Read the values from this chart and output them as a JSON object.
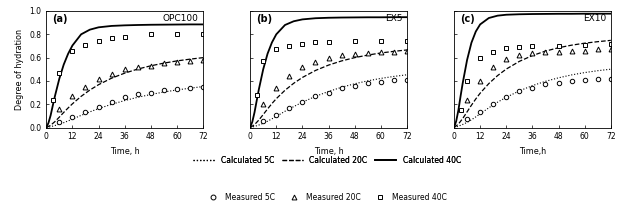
{
  "panels": [
    "(a)",
    "(b)",
    "(c)"
  ],
  "labels": [
    "OPC100",
    "EX5",
    "EX10"
  ],
  "xlabel": [
    "Time, h",
    "Time, h",
    "Time,h"
  ],
  "ylabel": "Degree of hydration",
  "xlim": [
    0,
    72
  ],
  "ylim": [
    0,
    1.0
  ],
  "xticks": [
    0,
    12,
    24,
    36,
    48,
    60,
    72
  ],
  "yticks": [
    0,
    0.2,
    0.4,
    0.6,
    0.8,
    1.0
  ],
  "calc_5C": {
    "OPC100": {
      "x": [
        0,
        2,
        4,
        6,
        8,
        10,
        12,
        16,
        20,
        24,
        30,
        36,
        42,
        48,
        54,
        60,
        66,
        72
      ],
      "y": [
        0,
        0.008,
        0.018,
        0.03,
        0.042,
        0.057,
        0.073,
        0.105,
        0.135,
        0.163,
        0.2,
        0.232,
        0.26,
        0.284,
        0.305,
        0.323,
        0.338,
        0.352
      ]
    },
    "EX5": {
      "x": [
        0,
        2,
        4,
        6,
        8,
        10,
        12,
        16,
        20,
        24,
        30,
        36,
        42,
        48,
        54,
        60,
        66,
        72
      ],
      "y": [
        0,
        0.01,
        0.022,
        0.037,
        0.055,
        0.075,
        0.096,
        0.14,
        0.18,
        0.218,
        0.268,
        0.31,
        0.346,
        0.376,
        0.401,
        0.422,
        0.439,
        0.453
      ]
    },
    "EX10": {
      "x": [
        0,
        2,
        4,
        6,
        8,
        10,
        12,
        16,
        20,
        24,
        30,
        36,
        42,
        48,
        54,
        60,
        66,
        72
      ],
      "y": [
        0,
        0.012,
        0.027,
        0.045,
        0.067,
        0.092,
        0.118,
        0.17,
        0.218,
        0.26,
        0.315,
        0.36,
        0.397,
        0.427,
        0.452,
        0.472,
        0.488,
        0.501
      ]
    }
  },
  "calc_20C": {
    "OPC100": {
      "x": [
        0,
        2,
        4,
        6,
        8,
        10,
        12,
        16,
        20,
        24,
        30,
        36,
        42,
        48,
        54,
        60,
        66,
        72
      ],
      "y": [
        0,
        0.02,
        0.052,
        0.09,
        0.13,
        0.168,
        0.204,
        0.268,
        0.322,
        0.368,
        0.424,
        0.467,
        0.502,
        0.53,
        0.553,
        0.572,
        0.587,
        0.6
      ]
    },
    "EX5": {
      "x": [
        0,
        2,
        4,
        6,
        8,
        10,
        12,
        16,
        20,
        24,
        30,
        36,
        42,
        48,
        54,
        60,
        66,
        72
      ],
      "y": [
        0,
        0.025,
        0.065,
        0.112,
        0.16,
        0.206,
        0.248,
        0.32,
        0.38,
        0.43,
        0.49,
        0.536,
        0.572,
        0.6,
        0.622,
        0.64,
        0.654,
        0.666
      ]
    },
    "EX10": {
      "x": [
        0,
        2,
        4,
        6,
        8,
        10,
        12,
        16,
        20,
        24,
        30,
        36,
        42,
        48,
        54,
        60,
        66,
        72
      ],
      "y": [
        0,
        0.03,
        0.078,
        0.135,
        0.192,
        0.246,
        0.295,
        0.378,
        0.446,
        0.502,
        0.568,
        0.618,
        0.656,
        0.685,
        0.707,
        0.724,
        0.737,
        0.748
      ]
    }
  },
  "calc_40C": {
    "OPC100": {
      "x": [
        0,
        1,
        2,
        3,
        4,
        6,
        8,
        10,
        12,
        16,
        20,
        24,
        30,
        36,
        42,
        48,
        54,
        60,
        66,
        72
      ],
      "y": [
        0,
        0.04,
        0.105,
        0.19,
        0.272,
        0.42,
        0.54,
        0.632,
        0.704,
        0.8,
        0.84,
        0.86,
        0.872,
        0.877,
        0.88,
        0.882,
        0.883,
        0.884,
        0.885,
        0.885
      ]
    },
    "EX5": {
      "x": [
        0,
        1,
        2,
        3,
        4,
        6,
        8,
        10,
        12,
        16,
        20,
        24,
        30,
        36,
        42,
        48,
        54,
        60,
        66,
        72
      ],
      "y": [
        0,
        0.05,
        0.13,
        0.23,
        0.328,
        0.5,
        0.634,
        0.73,
        0.8,
        0.88,
        0.912,
        0.928,
        0.938,
        0.942,
        0.944,
        0.945,
        0.946,
        0.946,
        0.947,
        0.947
      ]
    },
    "EX10": {
      "x": [
        0,
        1,
        2,
        3,
        4,
        6,
        8,
        10,
        12,
        16,
        20,
        24,
        30,
        36,
        42,
        48,
        54,
        60,
        66,
        72
      ],
      "y": [
        0,
        0.055,
        0.148,
        0.268,
        0.382,
        0.58,
        0.728,
        0.824,
        0.885,
        0.94,
        0.96,
        0.968,
        0.972,
        0.974,
        0.975,
        0.976,
        0.976,
        0.977,
        0.977,
        0.977
      ]
    }
  },
  "meas_5C": {
    "OPC100": {
      "x": [
        6,
        12,
        18,
        24,
        30,
        36,
        42,
        48,
        54,
        60,
        66,
        72
      ],
      "y": [
        0.05,
        0.09,
        0.13,
        0.18,
        0.22,
        0.26,
        0.29,
        0.3,
        0.32,
        0.33,
        0.34,
        0.35
      ]
    },
    "EX5": {
      "x": [
        6,
        12,
        18,
        24,
        30,
        36,
        42,
        48,
        54,
        60,
        66,
        72
      ],
      "y": [
        0.06,
        0.11,
        0.17,
        0.22,
        0.27,
        0.3,
        0.34,
        0.36,
        0.38,
        0.39,
        0.41,
        0.41
      ]
    },
    "EX10": {
      "x": [
        6,
        12,
        18,
        24,
        30,
        36,
        42,
        48,
        54,
        60,
        66,
        72
      ],
      "y": [
        0.07,
        0.13,
        0.2,
        0.26,
        0.31,
        0.34,
        0.37,
        0.38,
        0.4,
        0.41,
        0.42,
        0.42
      ]
    }
  },
  "meas_20C": {
    "OPC100": {
      "x": [
        6,
        12,
        18,
        24,
        30,
        36,
        42,
        48,
        54,
        60,
        66,
        72
      ],
      "y": [
        0.16,
        0.27,
        0.35,
        0.42,
        0.46,
        0.5,
        0.52,
        0.53,
        0.55,
        0.56,
        0.57,
        0.58
      ]
    },
    "EX5": {
      "x": [
        6,
        12,
        18,
        24,
        30,
        36,
        42,
        48,
        54,
        60,
        66,
        72
      ],
      "y": [
        0.2,
        0.34,
        0.44,
        0.52,
        0.56,
        0.6,
        0.62,
        0.63,
        0.64,
        0.65,
        0.65,
        0.66
      ]
    },
    "EX10": {
      "x": [
        6,
        12,
        18,
        24,
        30,
        36,
        42,
        48,
        54,
        60,
        66,
        72
      ],
      "y": [
        0.24,
        0.4,
        0.52,
        0.59,
        0.62,
        0.64,
        0.65,
        0.65,
        0.66,
        0.66,
        0.67,
        0.67
      ]
    }
  },
  "meas_40C": {
    "OPC100": {
      "x": [
        3,
        6,
        12,
        18,
        24,
        30,
        36,
        48,
        60,
        72
      ],
      "y": [
        0.24,
        0.47,
        0.66,
        0.71,
        0.74,
        0.77,
        0.78,
        0.8,
        0.8,
        0.8
      ]
    },
    "EX5": {
      "x": [
        3,
        6,
        12,
        18,
        24,
        30,
        36,
        48,
        60,
        72
      ],
      "y": [
        0.28,
        0.57,
        0.67,
        0.7,
        0.72,
        0.73,
        0.73,
        0.74,
        0.74,
        0.74
      ]
    },
    "EX10": {
      "x": [
        3,
        6,
        12,
        18,
        24,
        30,
        36,
        48,
        60,
        72
      ],
      "y": [
        0.15,
        0.4,
        0.6,
        0.65,
        0.68,
        0.69,
        0.7,
        0.7,
        0.71,
        0.72
      ]
    }
  },
  "line_color": "#000000",
  "bg_color": "#ffffff"
}
